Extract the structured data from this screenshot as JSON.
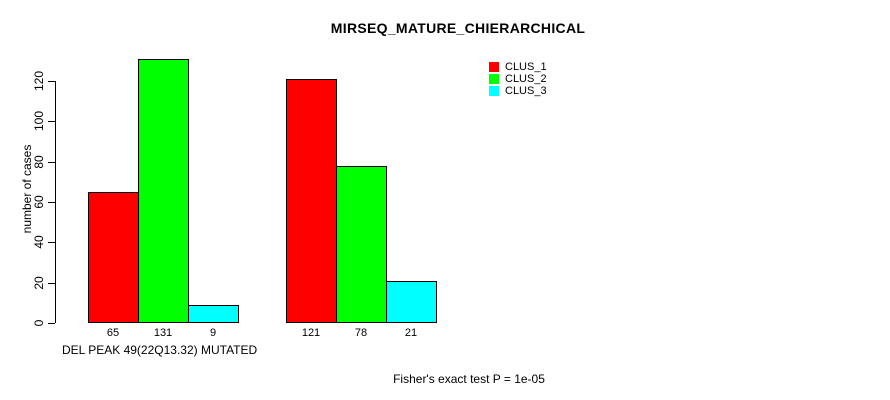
{
  "title": "MIRSEQ_MATURE_CHIERARCHICAL",
  "background": "#ffffff",
  "axis_color": "#000000",
  "chart_data": {
    "type": "bar",
    "title": "MIRSEQ_MATURE_CHIERARCHICAL",
    "ylabel": "number of cases",
    "xlabel": "DEL PEAK 49(22Q13.32) MUTATED",
    "annotation": "Fisher's exact test P = 1e-05",
    "ylim": [
      0,
      131
    ],
    "yticks": [
      0,
      20,
      40,
      60,
      80,
      100,
      120
    ],
    "grid": false,
    "legend_position": "top-right",
    "legend": [
      "CLUS_1",
      "CLUS_2",
      "CLUS_3"
    ],
    "series_colors": [
      "#ff0000",
      "#00ff00",
      "#00ffff"
    ],
    "categories": [
      "DEL PEAK 49(22Q13.32) MUTATED",
      ""
    ],
    "series": [
      {
        "name": "CLUS_1",
        "color": "#ff0000",
        "values": [
          65,
          121
        ]
      },
      {
        "name": "CLUS_2",
        "color": "#00ff00",
        "values": [
          131,
          78
        ]
      },
      {
        "name": "CLUS_3",
        "color": "#00ffff",
        "values": [
          9,
          21
        ]
      }
    ],
    "bar_labels": [
      [
        65,
        131,
        9
      ],
      [
        121,
        78,
        21
      ]
    ]
  }
}
